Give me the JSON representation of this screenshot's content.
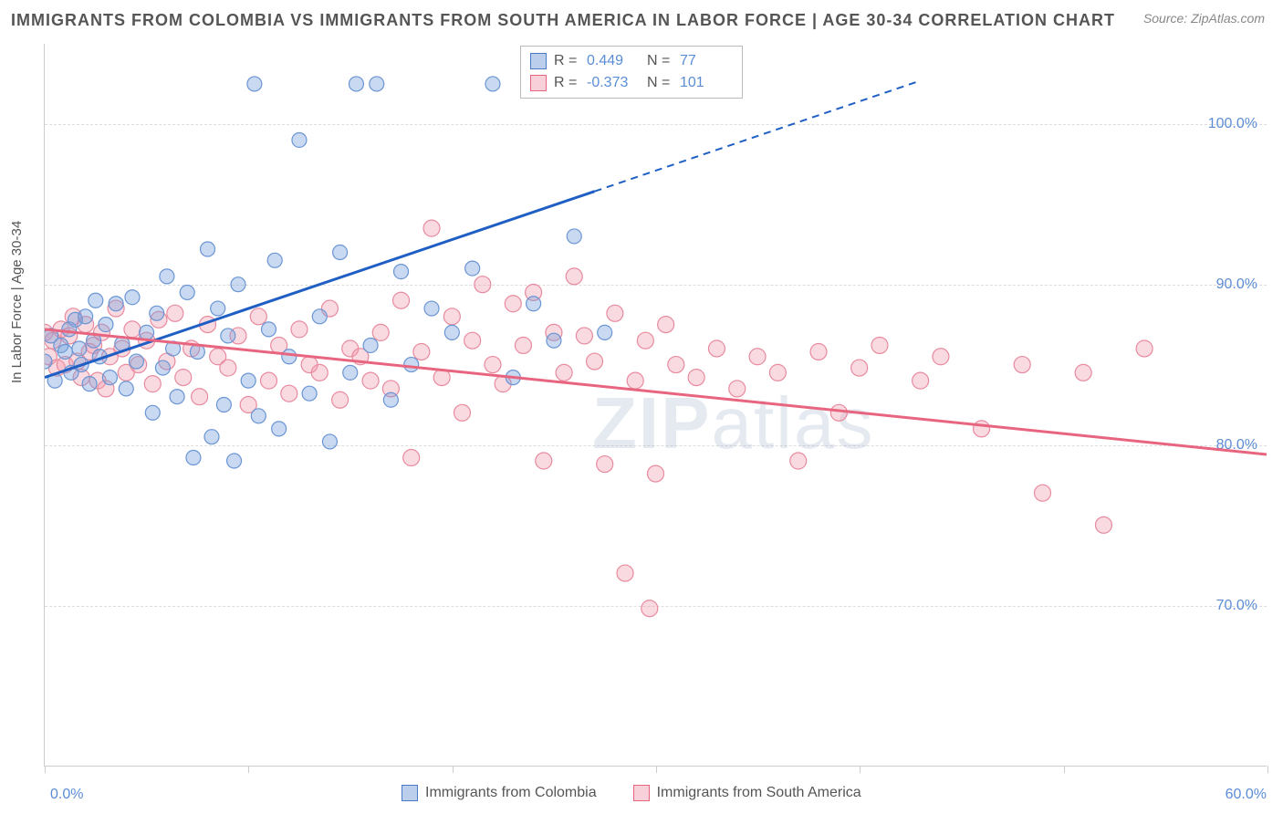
{
  "title": "IMMIGRANTS FROM COLOMBIA VS IMMIGRANTS FROM SOUTH AMERICA IN LABOR FORCE | AGE 30-34 CORRELATION CHART",
  "source": "Source: ZipAtlas.com",
  "ylabel": "In Labor Force | Age 30-34",
  "watermark_bold": "ZIP",
  "watermark_light": "atlas",
  "chart": {
    "type": "scatter",
    "xlim": [
      0,
      60
    ],
    "ylim": [
      60,
      105
    ],
    "ytick_labels": [
      "70.0%",
      "80.0%",
      "90.0%",
      "100.0%"
    ],
    "ytick_values": [
      70,
      80,
      90,
      100
    ],
    "xtick_values": [
      0,
      10,
      20,
      30,
      40,
      50,
      60
    ],
    "xtick_label_left": "0.0%",
    "xtick_label_right": "60.0%",
    "grid_color": "#dddddd",
    "axis_color": "#cccccc",
    "background_color": "#ffffff",
    "series_blue": {
      "name": "Immigrants from Colombia",
      "fill": "rgba(120,160,220,0.4)",
      "stroke": "#6a95d4",
      "trend_color": "#1f5fc4",
      "trend_dash_color": "#1f5fc4",
      "R_label": "R =",
      "R": "0.449",
      "N_label": "N =",
      "N": "77",
      "trend": {
        "x1": 0,
        "y1": 84.2,
        "x2": 27,
        "y2": 95.8,
        "dash_x2": 43,
        "dash_y2": 102.7
      },
      "marker_radius": 8,
      "points": [
        [
          0,
          85.2
        ],
        [
          0.3,
          86.8
        ],
        [
          0.5,
          84.0
        ],
        [
          0.8,
          86.2
        ],
        [
          1,
          85.8
        ],
        [
          1.2,
          87.2
        ],
        [
          1.3,
          84.5
        ],
        [
          1.5,
          87.8
        ],
        [
          1.7,
          86.0
        ],
        [
          1.8,
          85.0
        ],
        [
          2,
          88.0
        ],
        [
          2.2,
          83.8
        ],
        [
          2.4,
          86.5
        ],
        [
          2.5,
          89.0
        ],
        [
          2.7,
          85.5
        ],
        [
          3,
          87.5
        ],
        [
          3.2,
          84.2
        ],
        [
          3.5,
          88.8
        ],
        [
          3.8,
          86.3
        ],
        [
          4,
          83.5
        ],
        [
          4.3,
          89.2
        ],
        [
          4.5,
          85.2
        ],
        [
          5,
          87.0
        ],
        [
          5.3,
          82.0
        ],
        [
          5.5,
          88.2
        ],
        [
          5.8,
          84.8
        ],
        [
          6,
          90.5
        ],
        [
          6.3,
          86.0
        ],
        [
          6.5,
          83.0
        ],
        [
          7,
          89.5
        ],
        [
          7.3,
          79.2
        ],
        [
          7.5,
          85.8
        ],
        [
          8,
          92.2
        ],
        [
          8.2,
          80.5
        ],
        [
          8.5,
          88.5
        ],
        [
          8.8,
          82.5
        ],
        [
          9,
          86.8
        ],
        [
          9.3,
          79.0
        ],
        [
          9.5,
          90.0
        ],
        [
          10,
          84.0
        ],
        [
          10.3,
          102.5
        ],
        [
          10.5,
          81.8
        ],
        [
          11,
          87.2
        ],
        [
          11.3,
          91.5
        ],
        [
          11.5,
          81.0
        ],
        [
          12,
          85.5
        ],
        [
          12.5,
          99.0
        ],
        [
          13,
          83.2
        ],
        [
          13.5,
          88.0
        ],
        [
          14,
          80.2
        ],
        [
          14.5,
          92.0
        ],
        [
          15,
          84.5
        ],
        [
          15.3,
          102.5
        ],
        [
          16,
          86.2
        ],
        [
          16.3,
          102.5
        ],
        [
          17,
          82.8
        ],
        [
          17.5,
          90.8
        ],
        [
          18,
          85.0
        ],
        [
          19,
          88.5
        ],
        [
          20,
          87.0
        ],
        [
          21,
          91.0
        ],
        [
          22,
          102.5
        ],
        [
          23,
          84.2
        ],
        [
          24,
          88.8
        ],
        [
          25,
          86.5
        ],
        [
          26,
          93.0
        ],
        [
          27.5,
          87.0
        ]
      ]
    },
    "series_pink": {
      "name": "Immigrants from South America",
      "fill": "rgba(240,150,170,0.35)",
      "stroke": "#e88a9e",
      "trend_color": "#e8657f",
      "R_label": "R =",
      "R": "-0.373",
      "N_label": "N =",
      "N": "101",
      "trend": {
        "x1": 0,
        "y1": 87.2,
        "x2": 60,
        "y2": 79.4
      },
      "marker_radius": 9,
      "points": [
        [
          0,
          87.0
        ],
        [
          0.2,
          85.5
        ],
        [
          0.4,
          86.5
        ],
        [
          0.6,
          84.8
        ],
        [
          0.8,
          87.2
        ],
        [
          1,
          85.0
        ],
        [
          1.2,
          86.8
        ],
        [
          1.4,
          88.0
        ],
        [
          1.6,
          85.2
        ],
        [
          1.8,
          84.2
        ],
        [
          2,
          87.5
        ],
        [
          2.2,
          85.8
        ],
        [
          2.4,
          86.2
        ],
        [
          2.6,
          84.0
        ],
        [
          2.8,
          87.0
        ],
        [
          3,
          83.5
        ],
        [
          3.2,
          85.5
        ],
        [
          3.5,
          88.5
        ],
        [
          3.8,
          86.0
        ],
        [
          4,
          84.5
        ],
        [
          4.3,
          87.2
        ],
        [
          4.6,
          85.0
        ],
        [
          5,
          86.5
        ],
        [
          5.3,
          83.8
        ],
        [
          5.6,
          87.8
        ],
        [
          6,
          85.2
        ],
        [
          6.4,
          88.2
        ],
        [
          6.8,
          84.2
        ],
        [
          7.2,
          86.0
        ],
        [
          7.6,
          83.0
        ],
        [
          8,
          87.5
        ],
        [
          8.5,
          85.5
        ],
        [
          9,
          84.8
        ],
        [
          9.5,
          86.8
        ],
        [
          10,
          82.5
        ],
        [
          10.5,
          88.0
        ],
        [
          11,
          84.0
        ],
        [
          11.5,
          86.2
        ],
        [
          12,
          83.2
        ],
        [
          12.5,
          87.2
        ],
        [
          13,
          85.0
        ],
        [
          13.5,
          84.5
        ],
        [
          14,
          88.5
        ],
        [
          14.5,
          82.8
        ],
        [
          15,
          86.0
        ],
        [
          15.5,
          85.5
        ],
        [
          16,
          84.0
        ],
        [
          16.5,
          87.0
        ],
        [
          17,
          83.5
        ],
        [
          17.5,
          89.0
        ],
        [
          18,
          79.2
        ],
        [
          18.5,
          85.8
        ],
        [
          19,
          93.5
        ],
        [
          19.5,
          84.2
        ],
        [
          20,
          88.0
        ],
        [
          20.5,
          82.0
        ],
        [
          21,
          86.5
        ],
        [
          21.5,
          90.0
        ],
        [
          22,
          85.0
        ],
        [
          22.5,
          83.8
        ],
        [
          23,
          88.8
        ],
        [
          23.5,
          86.2
        ],
        [
          24,
          89.5
        ],
        [
          24.5,
          79.0
        ],
        [
          25,
          87.0
        ],
        [
          25.5,
          84.5
        ],
        [
          26,
          90.5
        ],
        [
          26.5,
          86.8
        ],
        [
          27,
          85.2
        ],
        [
          27.5,
          78.8
        ],
        [
          28,
          88.2
        ],
        [
          28.5,
          72.0
        ],
        [
          29,
          84.0
        ],
        [
          29.5,
          86.5
        ],
        [
          29.7,
          69.8
        ],
        [
          30,
          78.2
        ],
        [
          30.5,
          87.5
        ],
        [
          31,
          85.0
        ],
        [
          32,
          84.2
        ],
        [
          33,
          86.0
        ],
        [
          34,
          83.5
        ],
        [
          35,
          85.5
        ],
        [
          36,
          84.5
        ],
        [
          37,
          79.0
        ],
        [
          38,
          85.8
        ],
        [
          39,
          82.0
        ],
        [
          40,
          84.8
        ],
        [
          41,
          86.2
        ],
        [
          43,
          84.0
        ],
        [
          44,
          85.5
        ],
        [
          46,
          81.0
        ],
        [
          48,
          85.0
        ],
        [
          49,
          77.0
        ],
        [
          51,
          84.5
        ],
        [
          52,
          75.0
        ],
        [
          54,
          86.0
        ]
      ]
    }
  }
}
